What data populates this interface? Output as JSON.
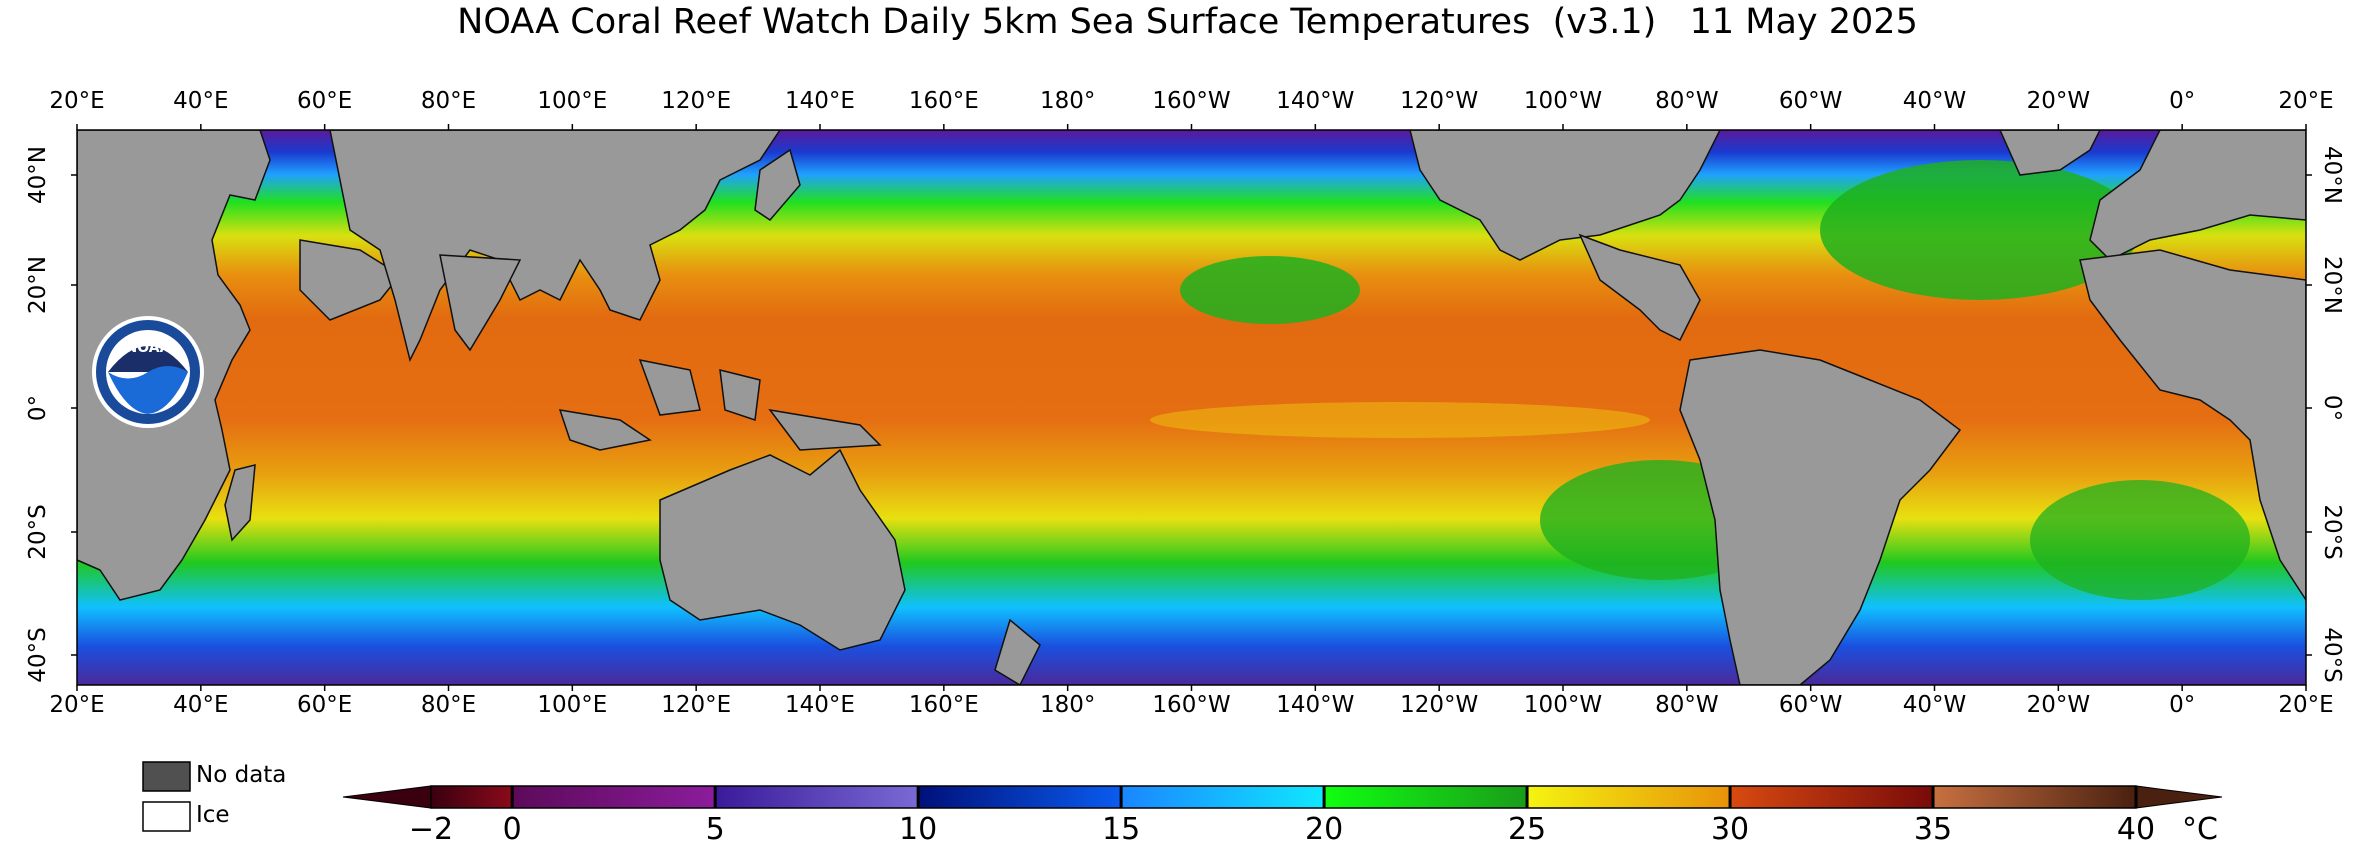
{
  "title": "NOAA Coral Reef Watch Daily 5km Sea Surface Temperatures  (v3.1)   11 May 2025",
  "logo_text": "NOAA",
  "longitude_labels": [
    "20°E",
    "40°E",
    "60°E",
    "80°E",
    "100°E",
    "120°E",
    "140°E",
    "160°E",
    "180°",
    "160°W",
    "140°W",
    "120°W",
    "100°W",
    "80°W",
    "60°W",
    "40°W",
    "20°W",
    "0°",
    "20°E"
  ],
  "latitude_labels": [
    "40°N",
    "20°N",
    "0°",
    "20°S",
    "40°S"
  ],
  "legend": {
    "no_data_label": "No data",
    "ice_label": "Ice",
    "no_data_color": "#505050",
    "ice_color": "#ffffff",
    "land_color": "#999999"
  },
  "colorbar": {
    "unit": "°C",
    "tick_labels": [
      "−2",
      "0",
      "5",
      "10",
      "15",
      "20",
      "25",
      "30",
      "35",
      "40"
    ],
    "ticks": [
      -2,
      0,
      5,
      10,
      15,
      20,
      25,
      30,
      35,
      40
    ],
    "range": [
      -2,
      40
    ],
    "segments": [
      {
        "from": -2,
        "to": 0,
        "start": "#3a0010",
        "end": "#8a0a1a"
      },
      {
        "from": 0,
        "to": 5,
        "start": "#5c0a5a",
        "end": "#8c1c9c"
      },
      {
        "from": 5,
        "to": 10,
        "start": "#3a1a9a",
        "end": "#7a6ad4"
      },
      {
        "from": 10,
        "to": 15,
        "start": "#00107a",
        "end": "#0a5cf0"
      },
      {
        "from": 15,
        "to": 20,
        "start": "#1a86ff",
        "end": "#10e8ff"
      },
      {
        "from": 20,
        "to": 25,
        "start": "#10ff10",
        "end": "#1a9c1a"
      },
      {
        "from": 25,
        "to": 30,
        "start": "#f4f410",
        "end": "#e8920a"
      },
      {
        "from": 30,
        "to": 35,
        "start": "#d84a10",
        "end": "#780a0a"
      },
      {
        "from": 35,
        "to": 40,
        "start": "#c87040",
        "end": "#4a2010"
      }
    ]
  }
}
